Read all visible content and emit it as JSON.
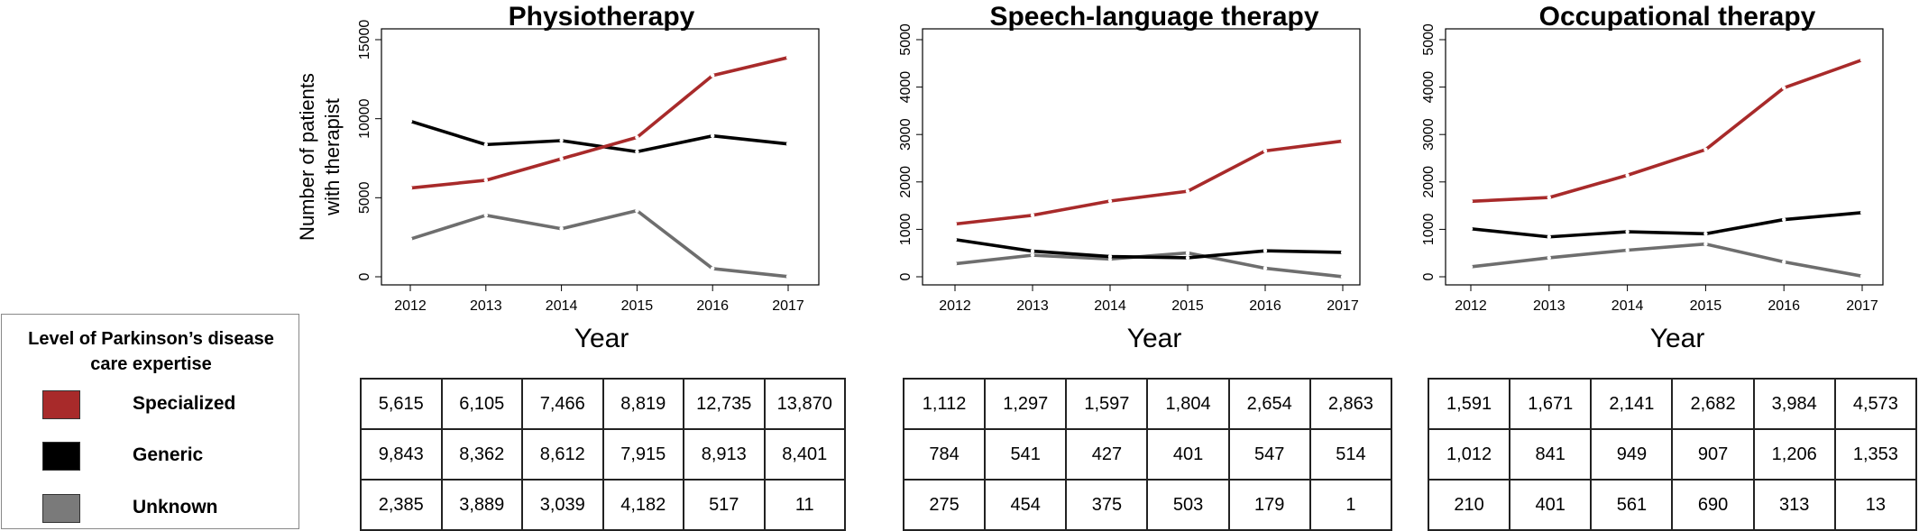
{
  "chart_data": [
    {
      "type": "line",
      "title": "Physiotherapy",
      "xlabel": "Year",
      "ylabel": "Number of patients with therapist",
      "ylabel_lines": [
        "Number of patients",
        "with therapist"
      ],
      "x": [
        "2012",
        "2013",
        "2014",
        "2015",
        "2016",
        "2017"
      ],
      "ylim": [
        0,
        15000
      ],
      "yticks": [
        "0",
        "5000",
        "10000",
        "15000"
      ],
      "series": [
        {
          "name": "Specialized",
          "values": [
            5615,
            6105,
            7466,
            8819,
            12735,
            13870
          ]
        },
        {
          "name": "Generic",
          "values": [
            9843,
            8362,
            8612,
            7915,
            8913,
            8401
          ]
        },
        {
          "name": "Unknown",
          "values": [
            2385,
            3889,
            3039,
            4182,
            517,
            11
          ]
        }
      ],
      "table": [
        [
          "5,615",
          "6,105",
          "7,466",
          "8,819",
          "12,735",
          "13,870"
        ],
        [
          "9,843",
          "8,362",
          "8,612",
          "7,915",
          "8,913",
          "8,401"
        ],
        [
          "2,385",
          "3,889",
          "3,039",
          "4,182",
          "517",
          "11"
        ]
      ]
    },
    {
      "type": "line",
      "title": "Speech-language therapy",
      "xlabel": "Year",
      "ylabel": "",
      "x": [
        "2012",
        "2013",
        "2014",
        "2015",
        "2016",
        "2017"
      ],
      "ylim": [
        0,
        5000
      ],
      "yticks": [
        "0",
        "1000",
        "2000",
        "3000",
        "4000",
        "5000"
      ],
      "series": [
        {
          "name": "Specialized",
          "values": [
            1112,
            1297,
            1597,
            1804,
            2654,
            2863
          ]
        },
        {
          "name": "Generic",
          "values": [
            784,
            541,
            427,
            401,
            547,
            514
          ]
        },
        {
          "name": "Unknown",
          "values": [
            275,
            454,
            375,
            503,
            179,
            1
          ]
        }
      ],
      "table": [
        [
          "1,112",
          "1,297",
          "1,597",
          "1,804",
          "2,654",
          "2,863"
        ],
        [
          "784",
          "541",
          "427",
          "401",
          "547",
          "514"
        ],
        [
          "275",
          "454",
          "375",
          "503",
          "179",
          "1"
        ]
      ]
    },
    {
      "type": "line",
      "title": "Occupational therapy",
      "xlabel": "Year",
      "ylabel": "",
      "x": [
        "2012",
        "2013",
        "2014",
        "2015",
        "2016",
        "2017"
      ],
      "ylim": [
        0,
        5000
      ],
      "yticks": [
        "0",
        "1000",
        "2000",
        "3000",
        "4000",
        "5000"
      ],
      "series": [
        {
          "name": "Specialized",
          "values": [
            1591,
            1671,
            2141,
            2682,
            3984,
            4573
          ]
        },
        {
          "name": "Generic",
          "values": [
            1012,
            841,
            949,
            907,
            1206,
            1353
          ]
        },
        {
          "name": "Unknown",
          "values": [
            210,
            401,
            561,
            690,
            313,
            13
          ]
        }
      ],
      "table": [
        [
          "1,591",
          "1,671",
          "2,141",
          "2,682",
          "3,984",
          "4,573"
        ],
        [
          "1,012",
          "841",
          "949",
          "907",
          "1,206",
          "1,353"
        ],
        [
          "210",
          "401",
          "561",
          "690",
          "313",
          "13"
        ]
      ]
    }
  ],
  "legend": {
    "title_line1": "Level of Parkinson’s disease",
    "title_line2": "care expertise",
    "items": [
      {
        "label": "Specialized",
        "color": "#a82a2a"
      },
      {
        "label": "Generic",
        "color": "#000000"
      },
      {
        "label": "Unknown",
        "color": "#7a7a7a"
      }
    ]
  },
  "colors": {
    "Specialized": "#a82a2a",
    "Generic": "#000000",
    "Unknown": "#6e6e6e"
  }
}
